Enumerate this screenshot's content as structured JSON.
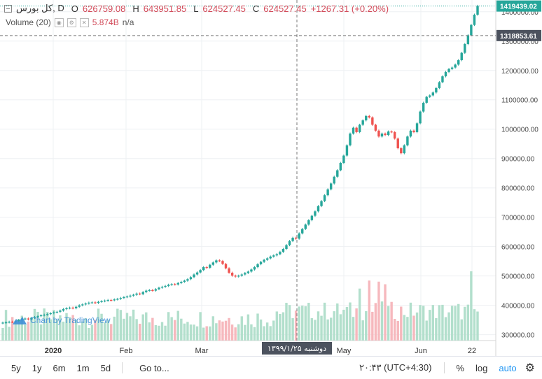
{
  "header": {
    "symbol": "کل بورس, D",
    "open_label": "O",
    "open": "626759.08",
    "high_label": "H",
    "high": "643951.85",
    "low_label": "L",
    "low": "624527.45",
    "close_label": "C",
    "close": "624527.45",
    "change": "+1267.31 (+0.20%)"
  },
  "volume_indicator": {
    "label": "Volume (20)",
    "value": "5.874B",
    "ma": "n/a"
  },
  "watermark": "Chart by TradingView",
  "crosshair": {
    "date_label": "دوشنبه ۱۳۹۹/۱/۲۵",
    "price_label": "1318853.61"
  },
  "last_price_label": "1419439.02",
  "bottom_bar": {
    "timeframes": [
      "5y",
      "1y",
      "6m",
      "1m",
      "5d"
    ],
    "goto": "Go to...",
    "clock": "۲۰:۴۳ (UTC+4:30)",
    "percent": "%",
    "log": "log",
    "auto": "auto"
  },
  "colors": {
    "up": "#26a69a",
    "down": "#ef5350",
    "up_vol": "#b2dfcc",
    "down_vol": "#f6b8bd"
  },
  "chart_data": {
    "type": "candlestick",
    "ylim": [
      280000,
      1440000
    ],
    "y_ticks": [
      "1400000.00",
      "1300000.00",
      "1200000.00",
      "1100000.00",
      "1000000.00",
      "900000.00",
      "800000.00",
      "700000.00",
      "600000.00",
      "500000.00",
      "400000.00",
      "300000.00"
    ],
    "x_ticks": [
      "2020",
      "Feb",
      "Mar",
      "May",
      "Jun",
      "22"
    ],
    "series": [
      {
        "close": [
          341000,
          342000,
          344000,
          343000,
          346000,
          350000,
          353000,
          355000,
          352000,
          357000,
          360000,
          363000,
          366000,
          368000,
          370000,
          373000,
          376000,
          378000,
          382000,
          387000,
          390000,
          392000,
          390000,
          395000,
          400000,
          403000,
          406000,
          409000,
          410000,
          408000,
          412000,
          414000,
          416000,
          418000,
          417000,
          420000,
          422000,
          425000,
          428000,
          430000,
          433000,
          436000,
          440000,
          438000,
          445000,
          450000,
          452000,
          450000,
          455000,
          460000,
          463000,
          466000,
          470000,
          472000,
          471000,
          476000,
          480000,
          484000,
          489000,
          496000,
          505000,
          512000,
          520000,
          530000,
          528000,
          538000,
          546000,
          553000,
          551000,
          541000,
          526000,
          511000,
          501000,
          498000,
          501000,
          505000,
          510000,
          515000,
          522000,
          530000,
          540000,
          548000,
          555000,
          560000,
          566000,
          570000,
          574000,
          582000,
          592000,
          605000,
          619000,
          630000,
          627000,
          645000,
          660000,
          675000,
          690000,
          705000,
          720000,
          738000,
          755000,
          775000,
          795000,
          815000,
          838000,
          860000,
          885000,
          910000,
          945000,
          985000,
          1005000,
          990000,
          1015000,
          1030000,
          1045000,
          1040000,
          1015000,
          995000,
          975000,
          985000,
          980000,
          992000,
          990000,
          968000,
          935000,
          918000,
          945000,
          975000,
          995000,
          990000,
          1020000,
          1060000,
          1090000,
          1110000,
          1115000,
          1125000,
          1140000,
          1160000,
          1180000,
          1195000,
          1205000,
          1210000,
          1220000,
          1235000,
          1260000,
          1290000,
          1320000,
          1355000,
          1390000,
          1420000
        ],
        "volume_note": "volume bars shown beneath candles"
      }
    ]
  }
}
